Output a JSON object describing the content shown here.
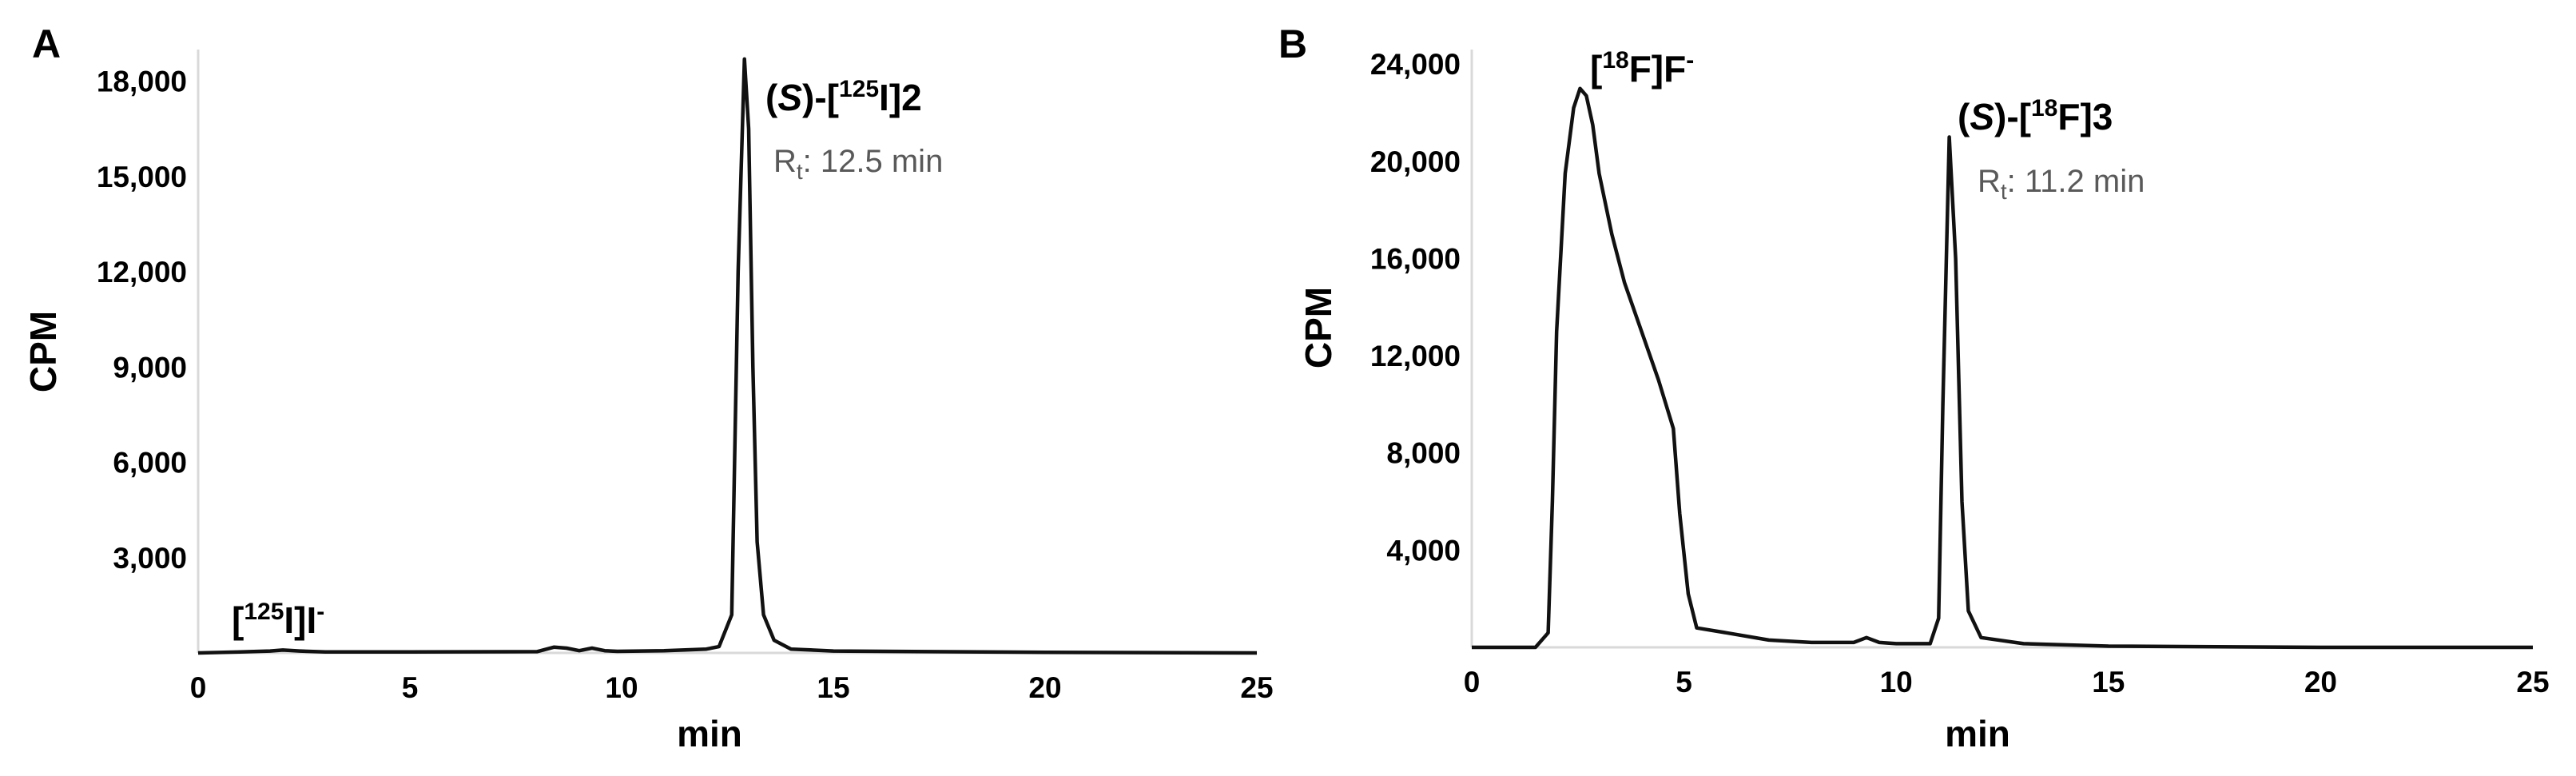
{
  "chart_data": [
    {
      "type": "line",
      "panel": "A",
      "xlabel": "min",
      "ylabel": "CPM",
      "xlim": [
        0,
        25
      ],
      "ylim": [
        0,
        19000
      ],
      "x_ticks": [
        0,
        5,
        10,
        15,
        20,
        25
      ],
      "y_ticks": [
        3000,
        6000,
        9000,
        12000,
        15000,
        18000
      ],
      "x_tick_labels": [
        "0",
        "5",
        "10",
        "15",
        "20",
        "25"
      ],
      "y_tick_labels": [
        "3,000",
        "6,000",
        "9,000",
        "12,000",
        "15,000",
        "18,000"
      ],
      "grid": false,
      "series": [
        {
          "x": [
            0,
            1,
            1.7,
            2.0,
            2.4,
            3,
            5,
            8,
            8.4,
            8.7,
            9.0,
            9.3,
            9.6,
            9.9,
            11,
            12,
            12.3,
            12.6,
            12.75,
            12.9,
            13.0,
            13.1,
            13.2,
            13.35,
            13.6,
            14,
            15,
            20,
            25
          ],
          "y": [
            0,
            30,
            60,
            90,
            60,
            30,
            30,
            40,
            180,
            150,
            70,
            150,
            70,
            50,
            70,
            120,
            200,
            1200,
            12000,
            18700,
            16500,
            9000,
            3500,
            1200,
            400,
            120,
            60,
            20,
            0
          ]
        }
      ],
      "annotations": [
        {
          "label_parts": [
            "[",
            "125",
            "I]I",
            "-"
          ],
          "x": 2.0,
          "y": 90
        },
        {
          "label_parts": [
            "(",
            "S",
            ")-[",
            "125",
            "I]2"
          ],
          "x": 12.9,
          "y": 18700
        },
        {
          "label_parts": [
            "R",
            "t",
            ": 12.5 min"
          ],
          "x": 12.9,
          "y": 18700
        }
      ]
    },
    {
      "type": "line",
      "panel": "B",
      "xlabel": "min",
      "ylabel": "CPM",
      "xlim": [
        0,
        25
      ],
      "ylim": [
        0,
        24600
      ],
      "x_ticks": [
        0,
        5,
        10,
        15,
        20,
        25
      ],
      "y_ticks": [
        4000,
        8000,
        12000,
        16000,
        20000,
        24000
      ],
      "x_tick_labels": [
        "0",
        "5",
        "10",
        "15",
        "20",
        "25"
      ],
      "y_tick_labels": [
        "4,000",
        "8,000",
        "12,000",
        "16,000",
        "20,000",
        "24,000"
      ],
      "grid": false,
      "series": [
        {
          "x": [
            0,
            1.5,
            1.8,
            1.9,
            2.0,
            2.2,
            2.4,
            2.55,
            2.7,
            2.85,
            3.0,
            3.3,
            3.6,
            4.0,
            4.4,
            4.75,
            4.9,
            5.1,
            5.3,
            6,
            7,
            8,
            9,
            9.3,
            9.6,
            10,
            10.8,
            11.0,
            11.1,
            11.25,
            11.4,
            11.55,
            11.7,
            12,
            13,
            15,
            20,
            25
          ],
          "y": [
            0,
            0,
            600,
            6000,
            13000,
            19500,
            22200,
            23000,
            22700,
            21500,
            19500,
            17000,
            15000,
            13000,
            11000,
            9000,
            5500,
            2200,
            800,
            600,
            300,
            200,
            200,
            400,
            200,
            150,
            150,
            1200,
            10000,
            21000,
            16000,
            6000,
            1500,
            400,
            150,
            50,
            0,
            0
          ]
        }
      ],
      "annotations": [
        {
          "label_parts": [
            "[",
            "18",
            "F]F",
            "-"
          ],
          "x": 2.55,
          "y": 23000
        },
        {
          "label_parts": [
            "(",
            "S",
            ")-[",
            "18",
            "F]3"
          ],
          "x": 11.25,
          "y": 21000
        },
        {
          "label_parts": [
            "R",
            "t",
            ": 11.2 min"
          ],
          "x": 11.25,
          "y": 21000
        }
      ]
    }
  ]
}
